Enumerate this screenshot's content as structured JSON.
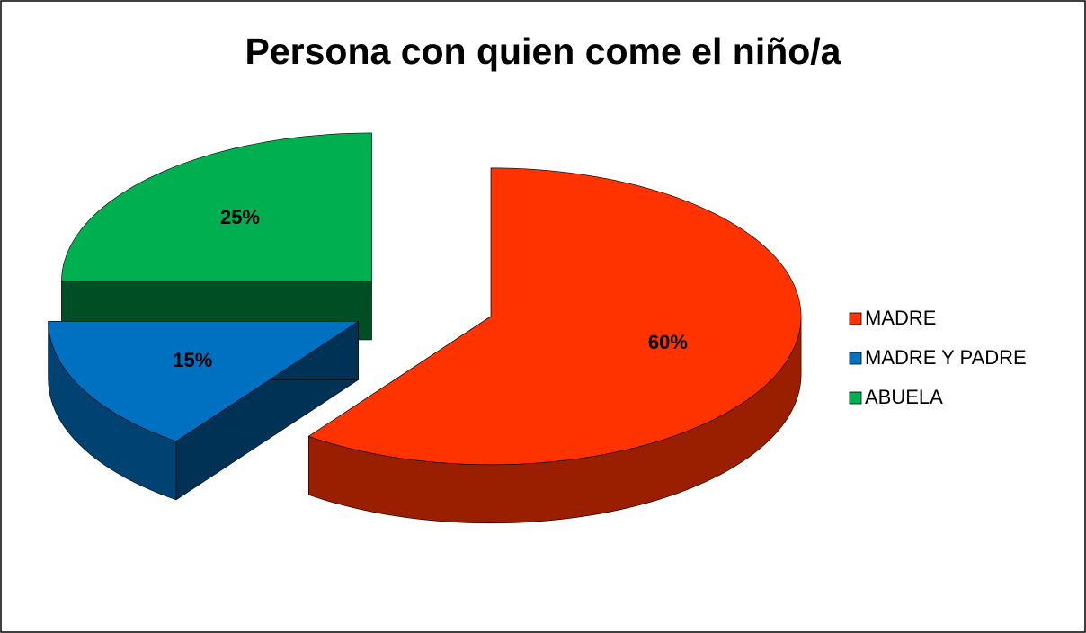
{
  "chart_data": {
    "type": "pie",
    "title": "Persona con quien come el niño/a",
    "categories": [
      "MADRE",
      "MADRE Y PADRE",
      "ABUELA"
    ],
    "values": [
      60,
      15,
      25
    ],
    "value_labels": [
      "60%",
      "15%",
      "25%"
    ],
    "colors": [
      "#ff3300",
      "#0070c0",
      "#00b050"
    ],
    "legend": "right"
  }
}
